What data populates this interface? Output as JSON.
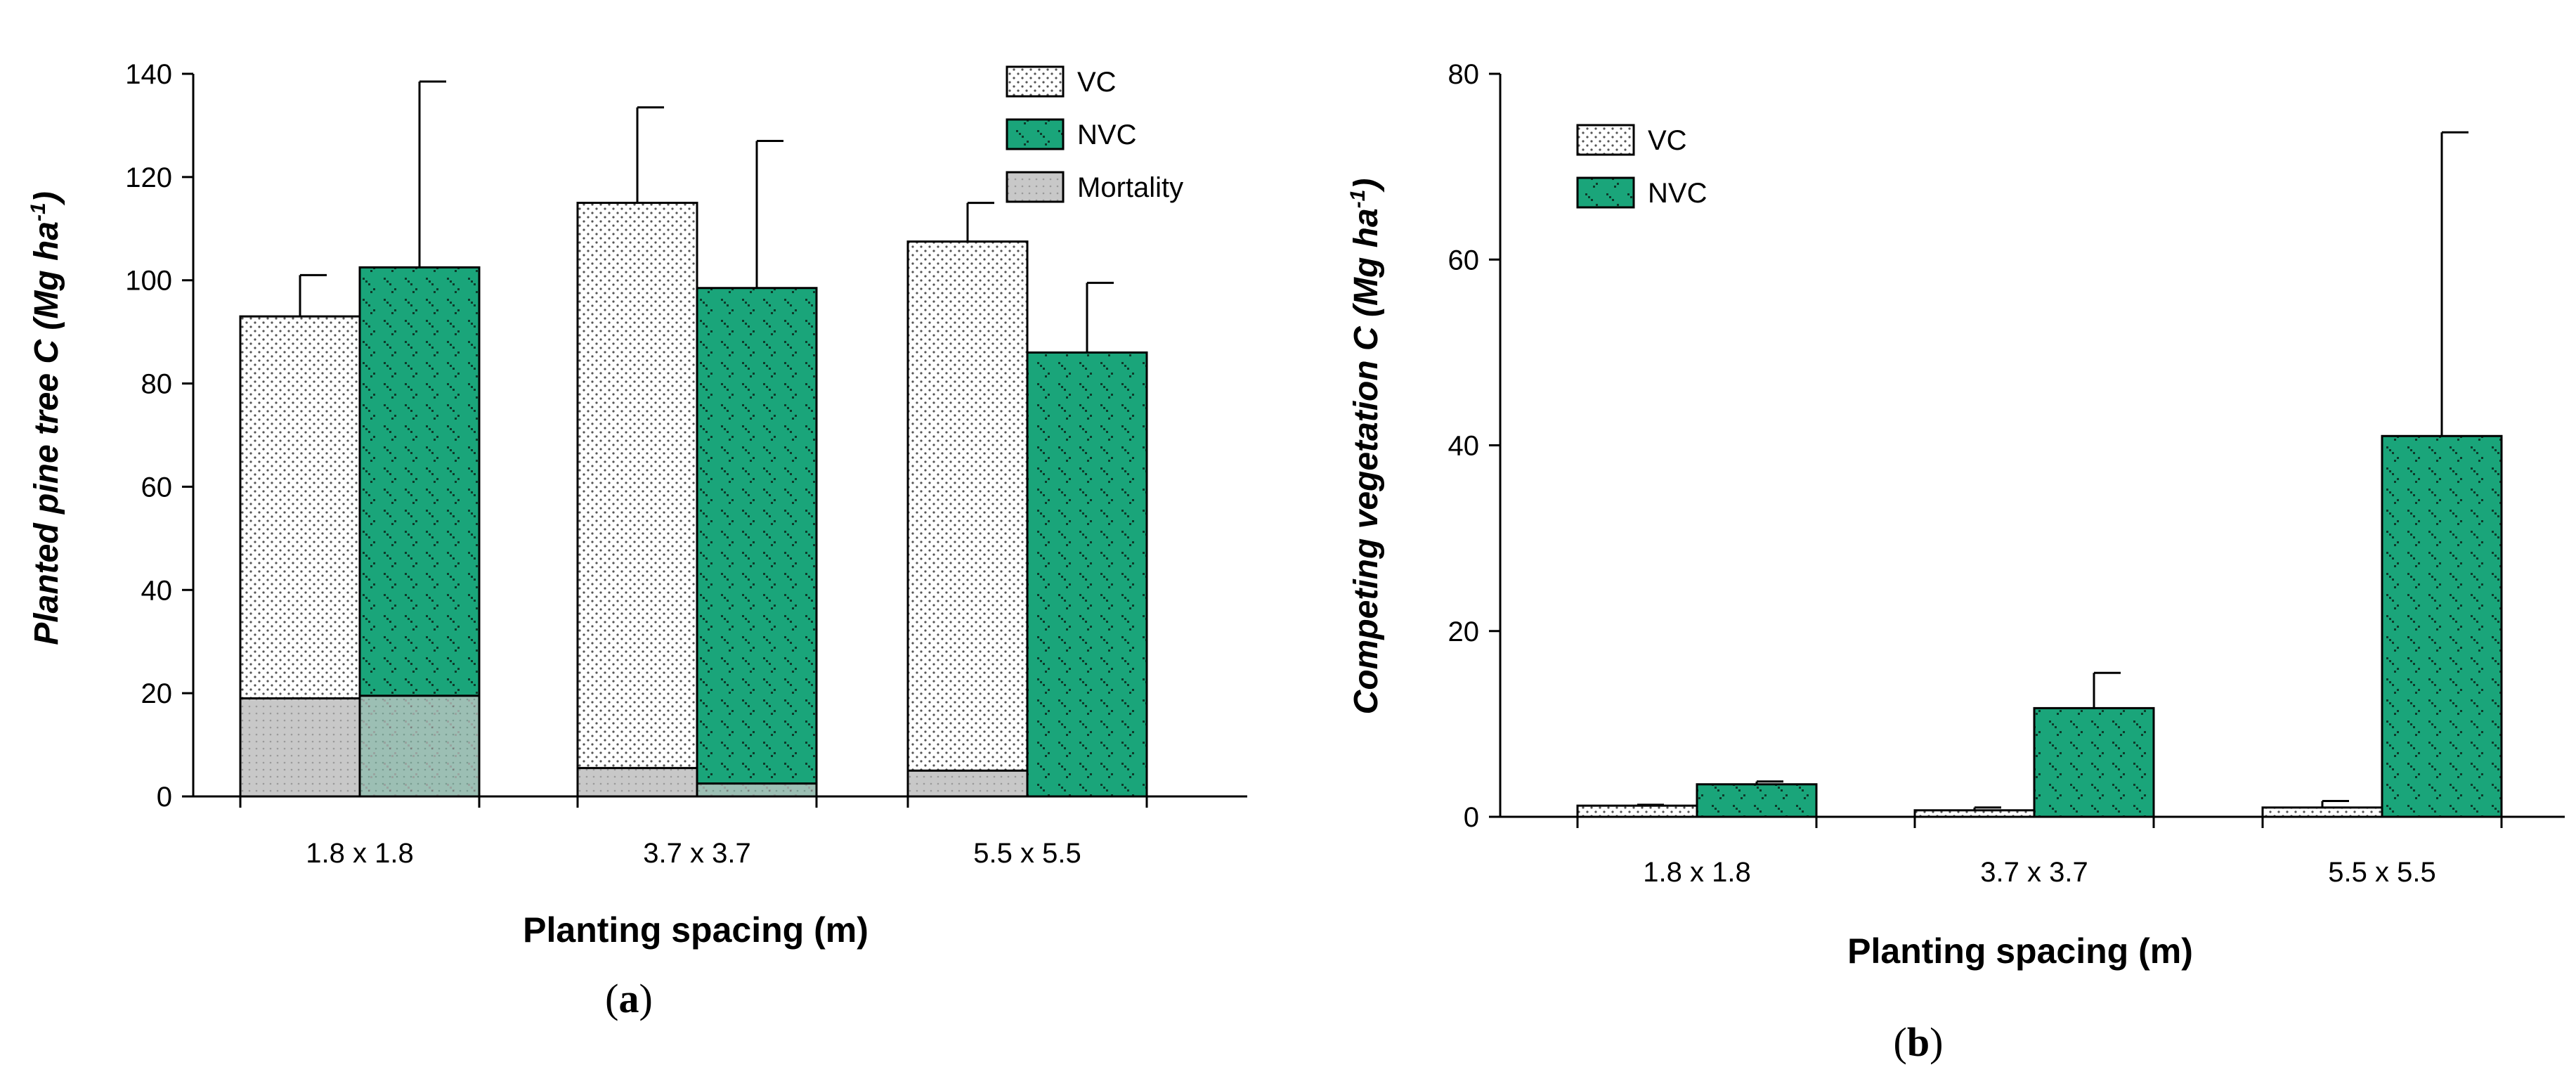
{
  "colors": {
    "nvc": "#1aa57a",
    "vc": "#ffffff",
    "mortality": "#c8c8c8"
  },
  "chart_data": [
    {
      "type": "bar",
      "panel_label": "(a)",
      "panel_letter": "a",
      "xlabel": "Planting spacing (m)",
      "ylabel": "Planted pine tree C (Mg ha",
      "ylabel_exp": "-1",
      "ylim": [
        0,
        140
      ],
      "yticks": [
        0,
        20,
        40,
        60,
        80,
        100,
        120,
        140
      ],
      "categories": [
        "1.8 x 1.8",
        "3.7 x 3.7",
        "5.5 x 5.5"
      ],
      "legend": [
        "VC",
        "NVC",
        "Mortality"
      ],
      "legend_position": "top-right",
      "series": [
        {
          "name": "VC",
          "values": [
            93,
            115,
            107.5
          ],
          "error": [
            8,
            18.5,
            7.5
          ],
          "mortality": [
            19,
            5.5,
            5
          ]
        },
        {
          "name": "NVC",
          "values": [
            102.5,
            98.5,
            86
          ],
          "error": [
            36,
            28.5,
            13.5
          ],
          "mortality": [
            19.5,
            2.5,
            0
          ]
        }
      ]
    },
    {
      "type": "bar",
      "panel_label": "(b)",
      "panel_letter": "b",
      "xlabel": "Planting spacing (m)",
      "ylabel": "Competing vegetation C (Mg ha",
      "ylabel_exp": "-1",
      "ylim": [
        0,
        80
      ],
      "yticks": [
        0,
        20,
        40,
        60,
        80
      ],
      "categories": [
        "1.8 x 1.8",
        "3.7 x 3.7",
        "5.5 x 5.5"
      ],
      "legend": [
        "VC",
        "NVC"
      ],
      "legend_position": "top-left",
      "series": [
        {
          "name": "VC",
          "values": [
            1.2,
            0.7,
            1.0
          ],
          "error": [
            0.1,
            0.3,
            0.7
          ]
        },
        {
          "name": "NVC",
          "values": [
            3.5,
            11.7,
            41.0
          ],
          "error": [
            0.3,
            3.8,
            32.7
          ]
        }
      ]
    }
  ]
}
